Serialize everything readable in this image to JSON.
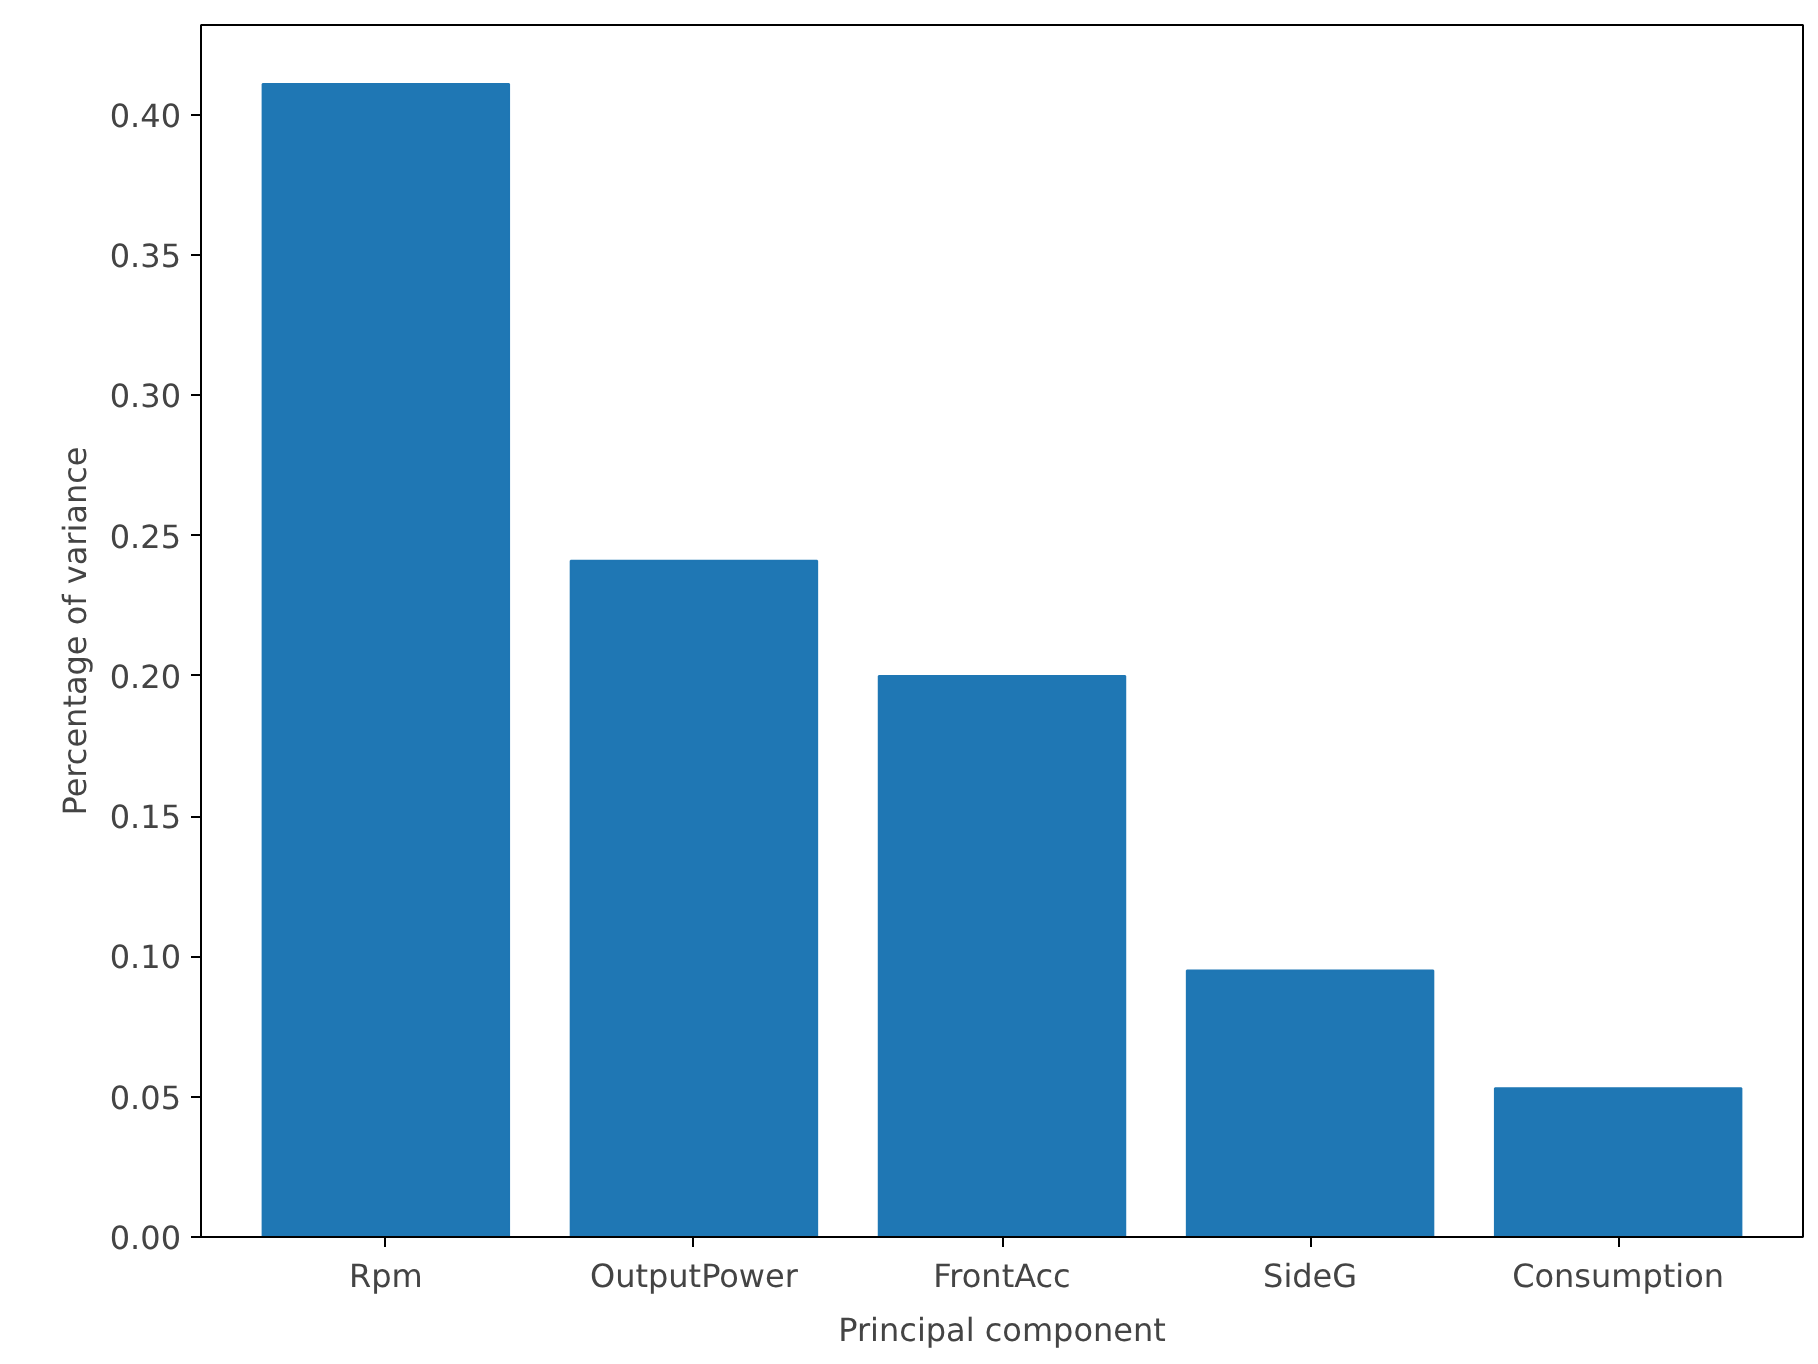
{
  "chart_data": {
    "type": "bar",
    "xlabel": "Principal component",
    "ylabel": "Percentage of variance",
    "categories": [
      "Rpm",
      "OutputPower",
      "FrontAcc",
      "SideG",
      "Consumption"
    ],
    "values": [
      0.411,
      0.241,
      0.2,
      0.095,
      0.053
    ],
    "color": "#1f77b4",
    "ylim": [
      0,
      0.432
    ],
    "yticks": [
      {
        "value": 0,
        "label": "0.00"
      },
      {
        "value": 0.05,
        "label": "0.05"
      },
      {
        "value": 0.1,
        "label": "0.10"
      },
      {
        "value": 0.15,
        "label": "0.15"
      },
      {
        "value": 0.2,
        "label": "0.20"
      },
      {
        "value": 0.25,
        "label": "0.25"
      },
      {
        "value": 0.3,
        "label": "0.30"
      },
      {
        "value": 0.35,
        "label": "0.35"
      },
      {
        "value": 0.4,
        "label": "0.40"
      }
    ],
    "grid": false
  }
}
